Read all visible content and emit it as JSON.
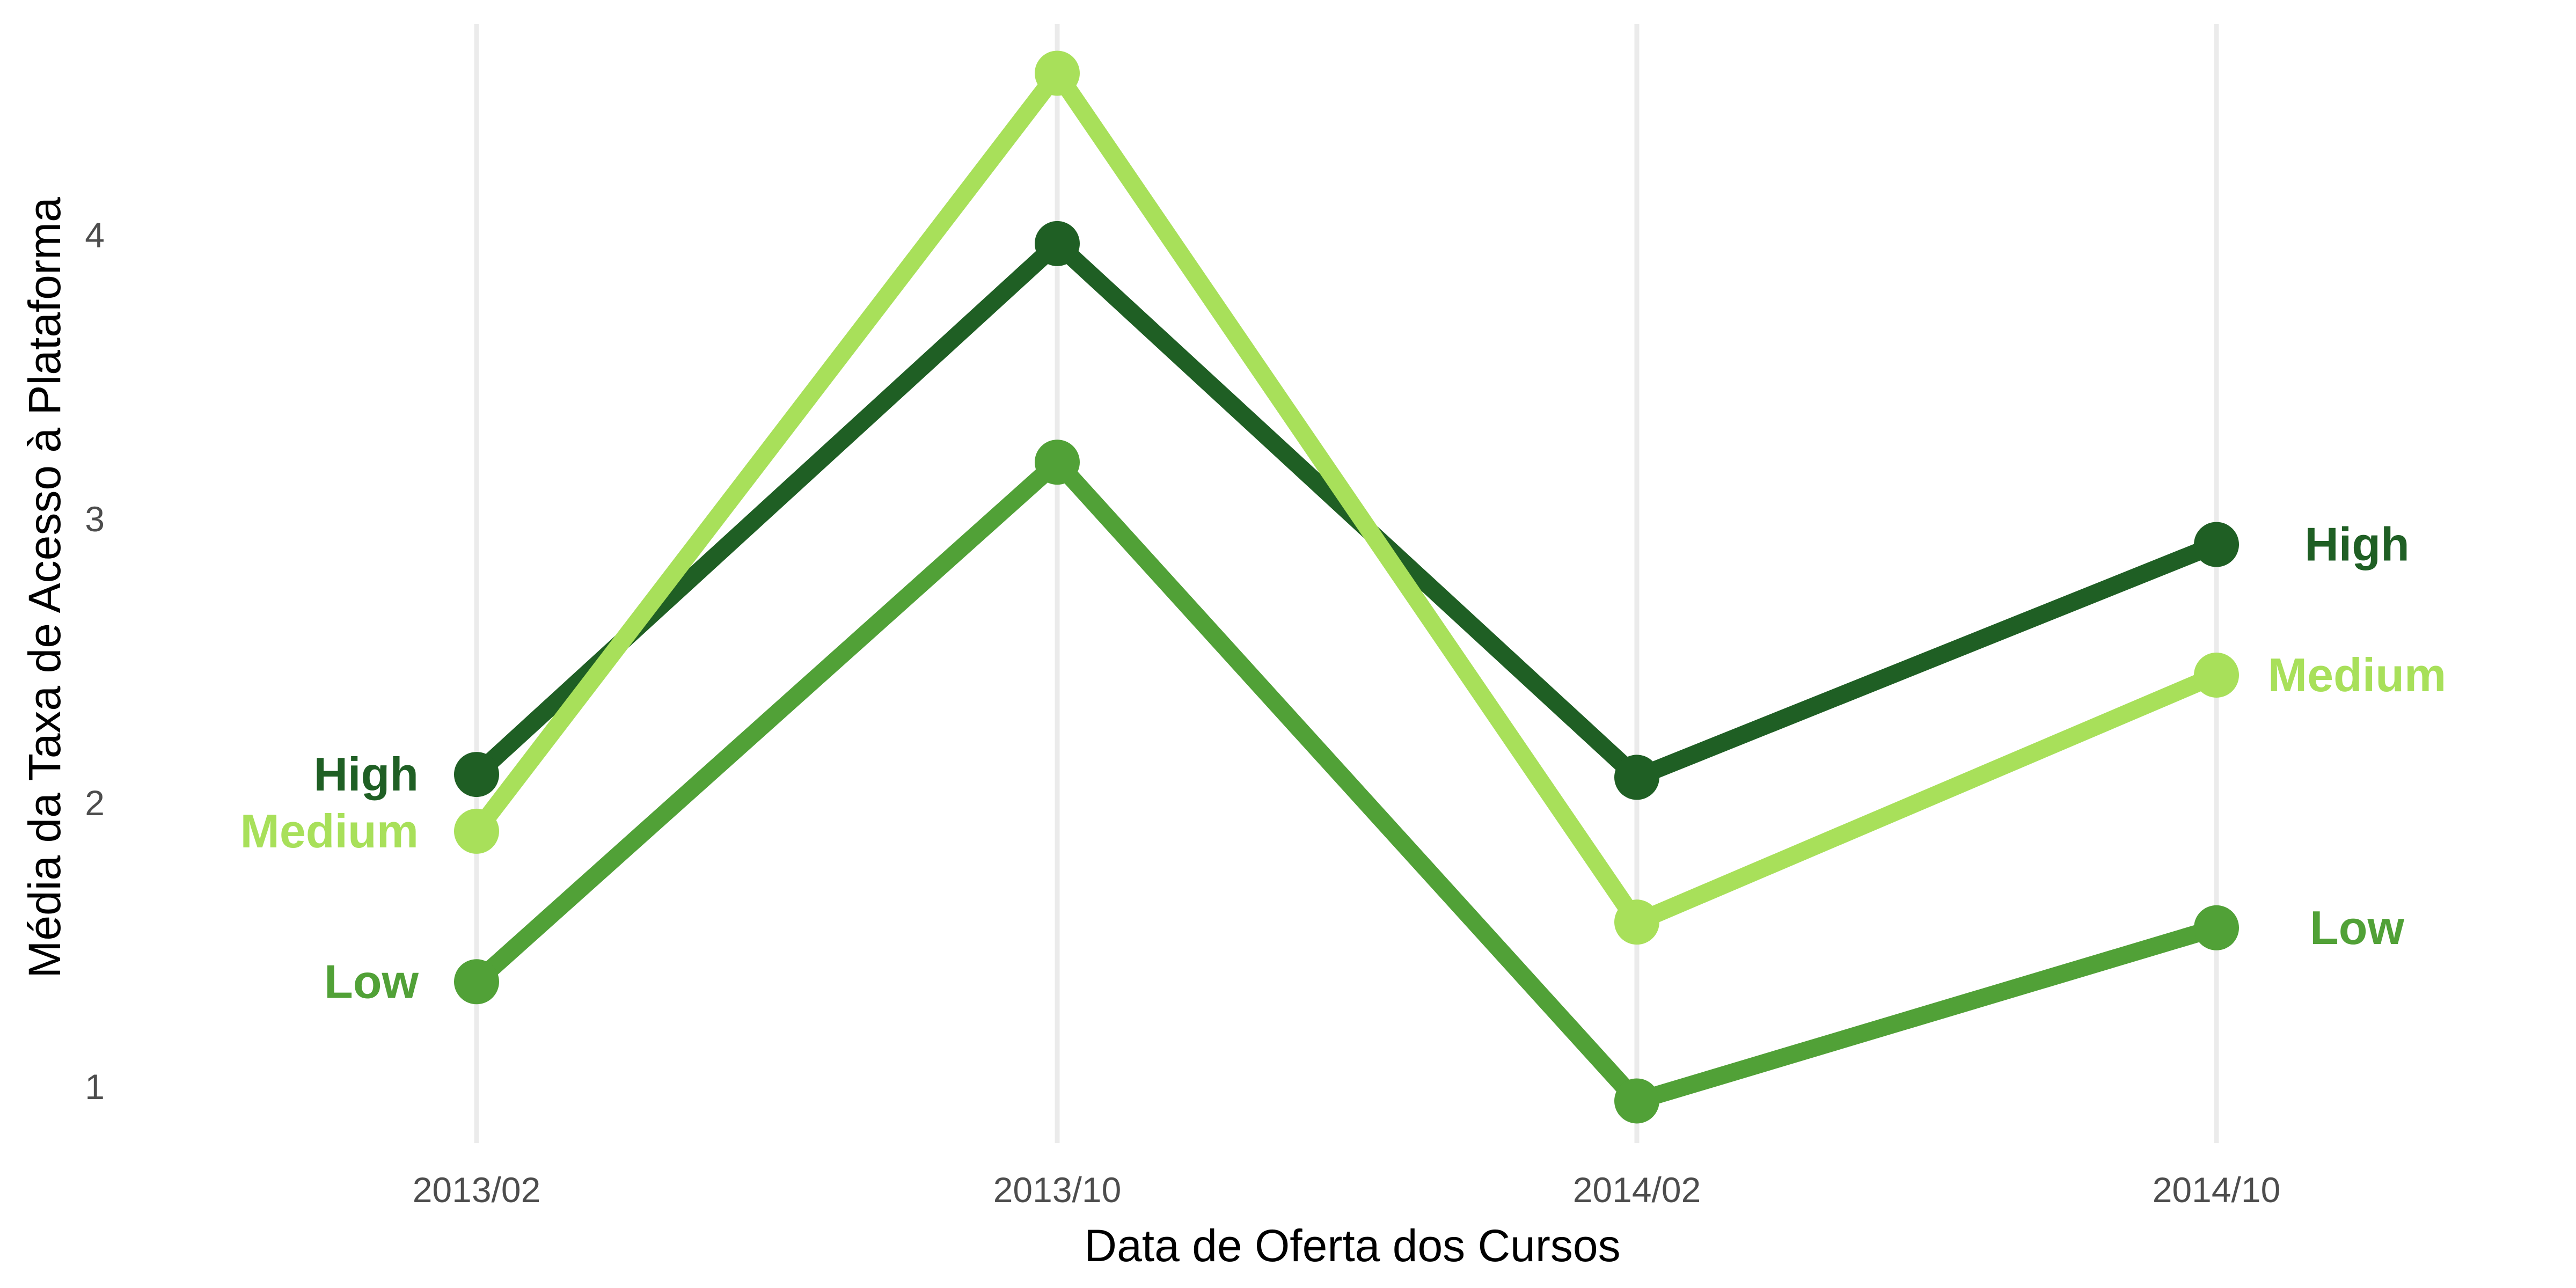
{
  "chart_data": {
    "type": "line",
    "title": "",
    "xlabel": "Data de Oferta dos Cursos",
    "ylabel": "Média da Taxa de Acesso à Plataforma",
    "categories": [
      "2013/02",
      "2013/10",
      "2014/02",
      "2014/10"
    ],
    "yticks": [
      1,
      2,
      3,
      4
    ],
    "ylim": [
      0.8,
      4.65
    ],
    "grid": "vertical only",
    "legend": "none (direct labels at line ends)",
    "series": [
      {
        "name": "High",
        "color": "#1f5f24",
        "values": [
          2.1,
          3.97,
          2.09,
          2.91
        ]
      },
      {
        "name": "Medium",
        "color": "#a8e05a",
        "values": [
          1.9,
          4.57,
          1.58,
          2.45
        ]
      },
      {
        "name": "Low",
        "color": "#51a137",
        "values": [
          1.37,
          3.2,
          0.95,
          1.56
        ]
      }
    ]
  }
}
